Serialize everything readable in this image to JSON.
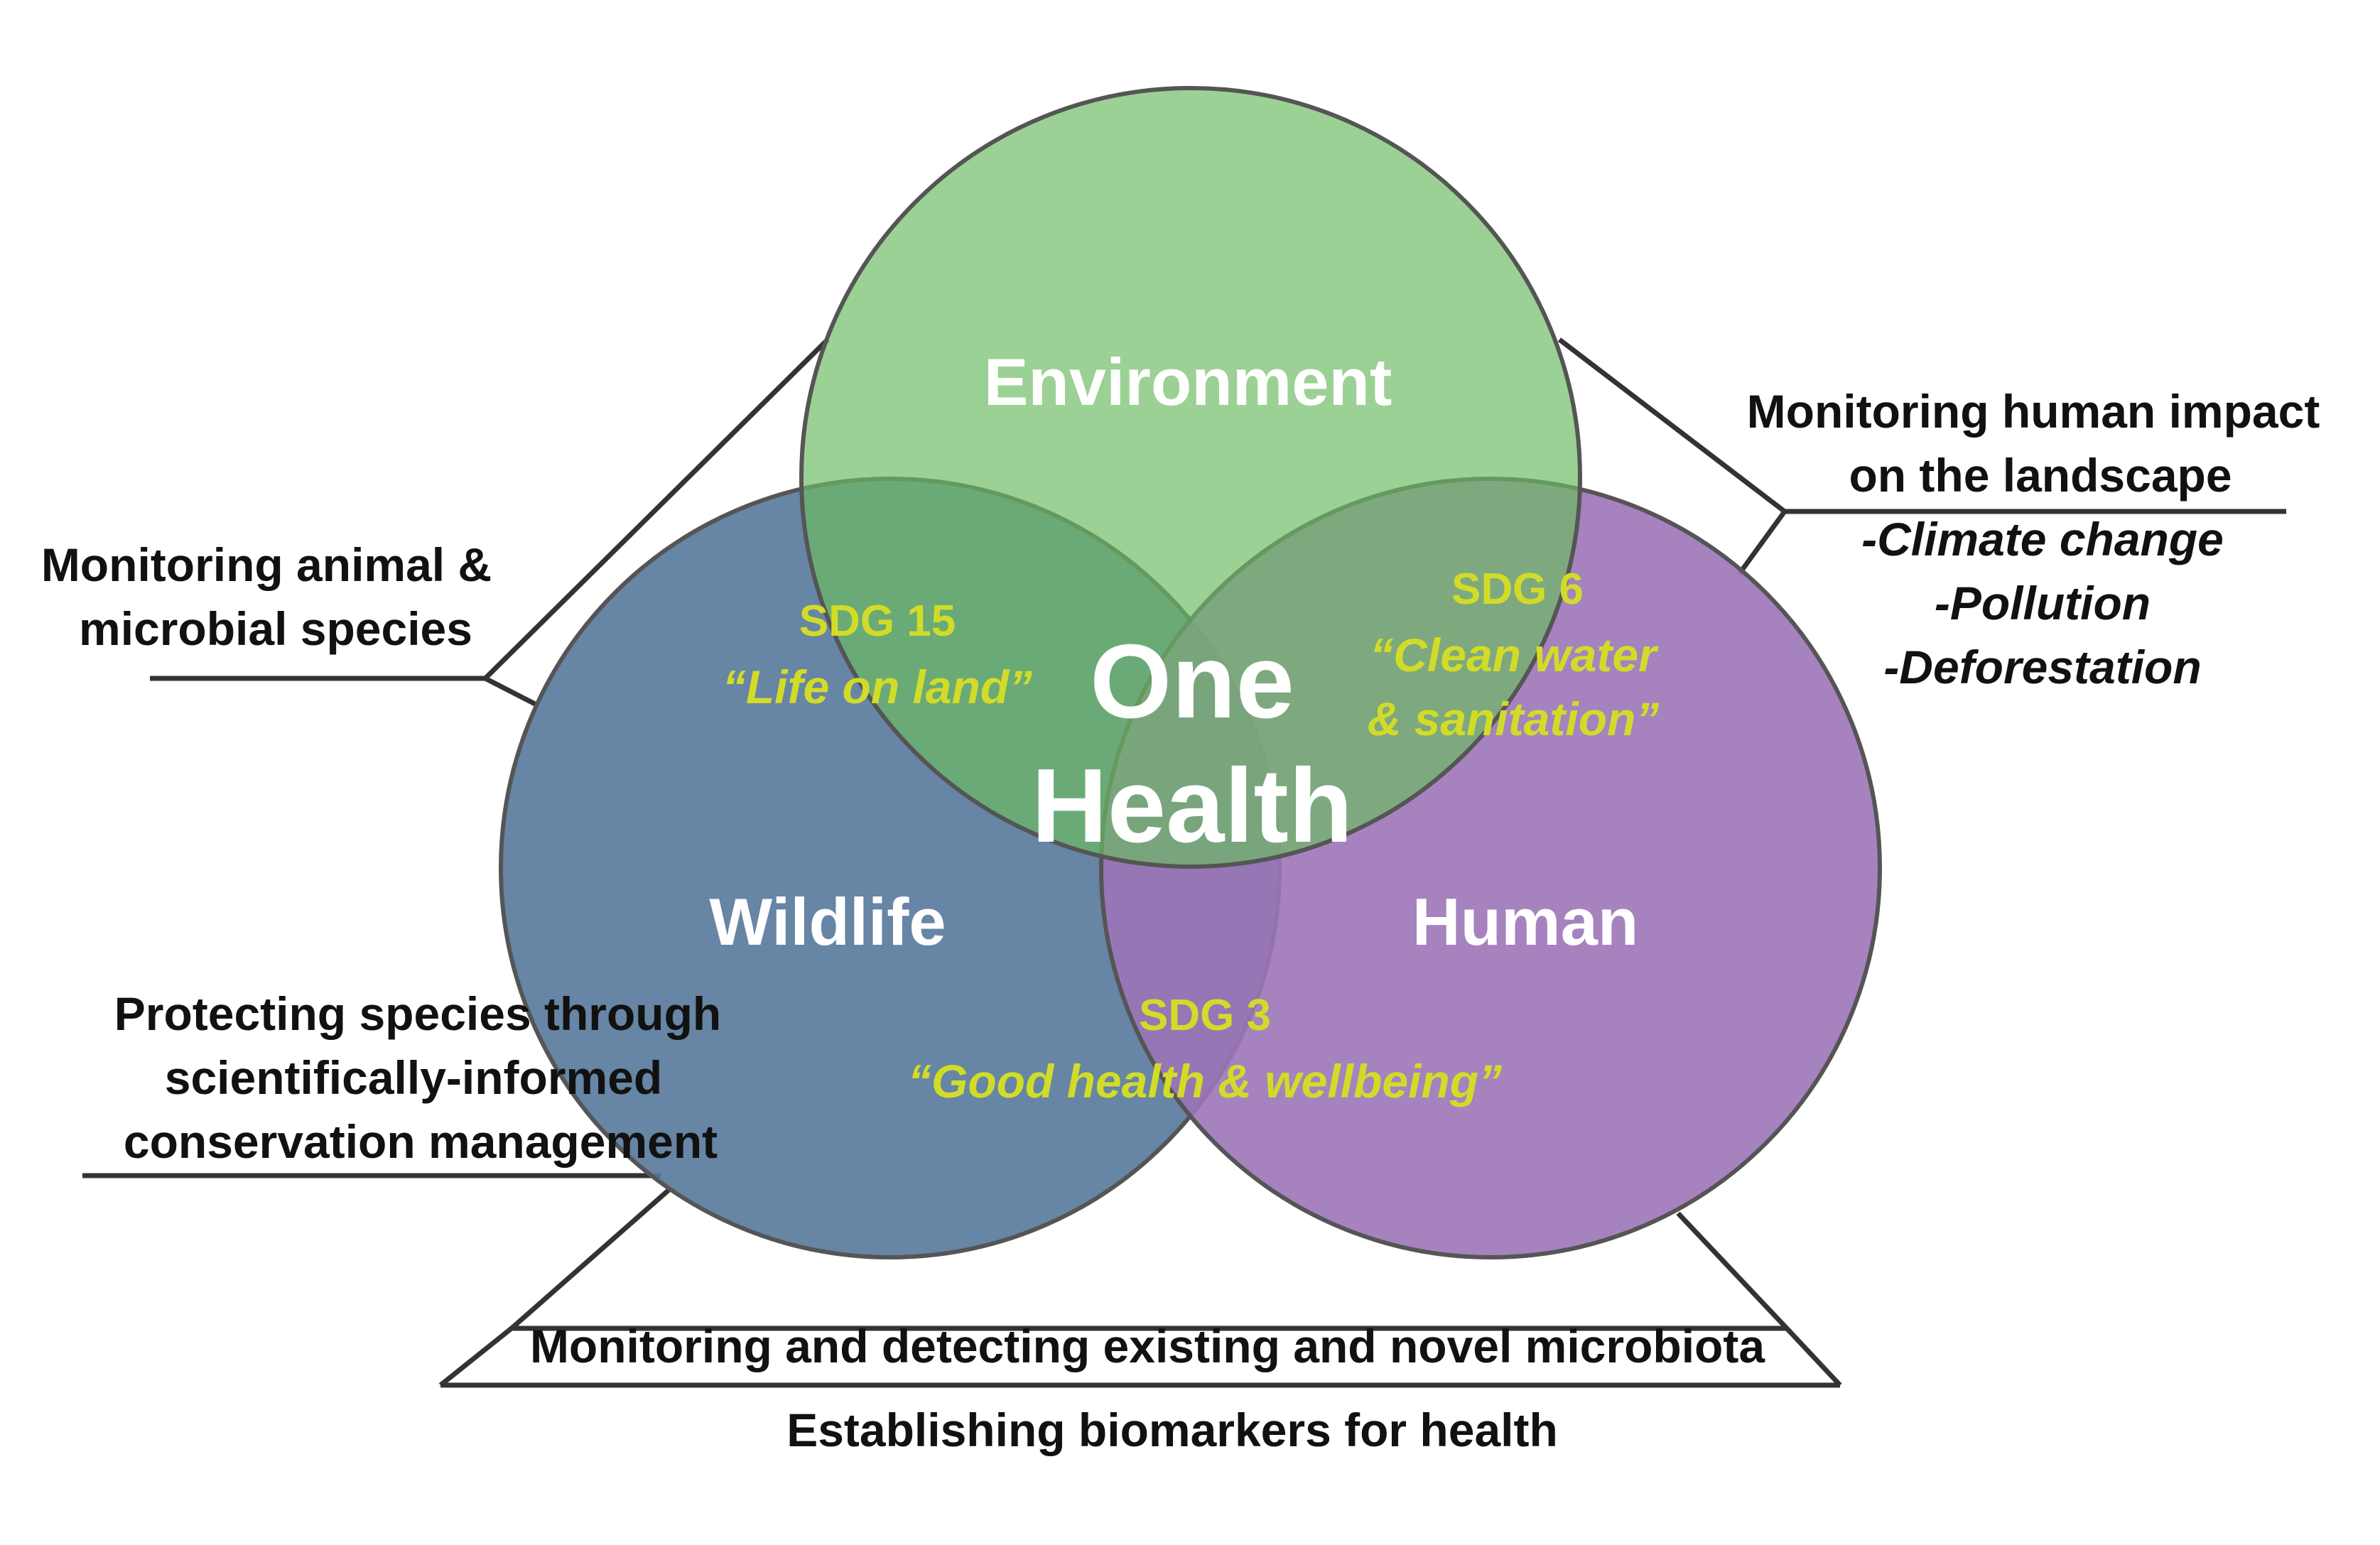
{
  "circles": {
    "environment": {
      "label": "Environment",
      "color": "#6bbb62"
    },
    "wildlife": {
      "label": "Wildlife",
      "color": "#56789a"
    },
    "human": {
      "label": "Human",
      "color": "#9c74b8"
    }
  },
  "center": {
    "line1": "One",
    "line2": "Health"
  },
  "sdgs": {
    "sdg15": {
      "title": "SDG 15",
      "quote": "“Life on land”"
    },
    "sdg6": {
      "title": "SDG 6",
      "quote_line1": "“Clean water",
      "quote_line2": "& sanitation”"
    },
    "sdg3": {
      "title": "SDG 3",
      "quote": "“Good health & wellbeing”"
    }
  },
  "annotations": {
    "left_top": {
      "line1": "Monitoring animal &",
      "line2": "microbial species"
    },
    "left_bottom": {
      "line1": "Protecting species through",
      "line2": "scientifically-informed",
      "line3": "conservation management"
    },
    "right_top": {
      "line1": "Monitoring human impact",
      "line2": "on the landscape",
      "items": [
        "-Climate change",
        "-Pollution",
        "-Deforestation"
      ]
    },
    "bottom": {
      "line1": "Monitoring and detecting existing and novel microbiota",
      "line2": "Establishing biomarkers for health"
    }
  },
  "colors": {
    "sdg_text": "#d2dc28",
    "outline": "#555555",
    "leader": "#333333"
  }
}
